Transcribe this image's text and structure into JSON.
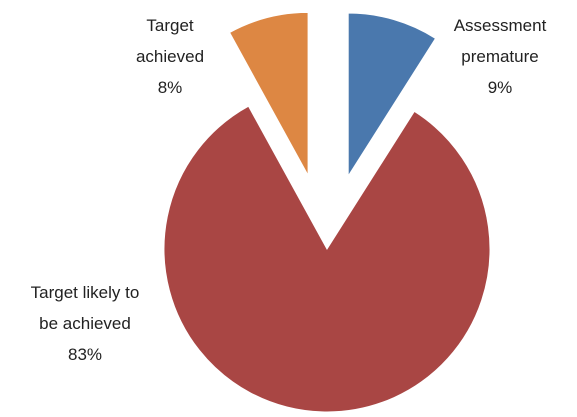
{
  "chart_data": {
    "type": "pie",
    "categories": [
      "Assessment premature",
      "Target likely to be achieved",
      "Target achieved"
    ],
    "values": [
      9,
      83,
      8
    ],
    "value_labels": [
      "9%",
      "83%",
      "8%"
    ],
    "colors": [
      "#4a78ad",
      "#a94644",
      "#dd8743"
    ],
    "exploded": [
      true,
      false,
      true
    ]
  }
}
